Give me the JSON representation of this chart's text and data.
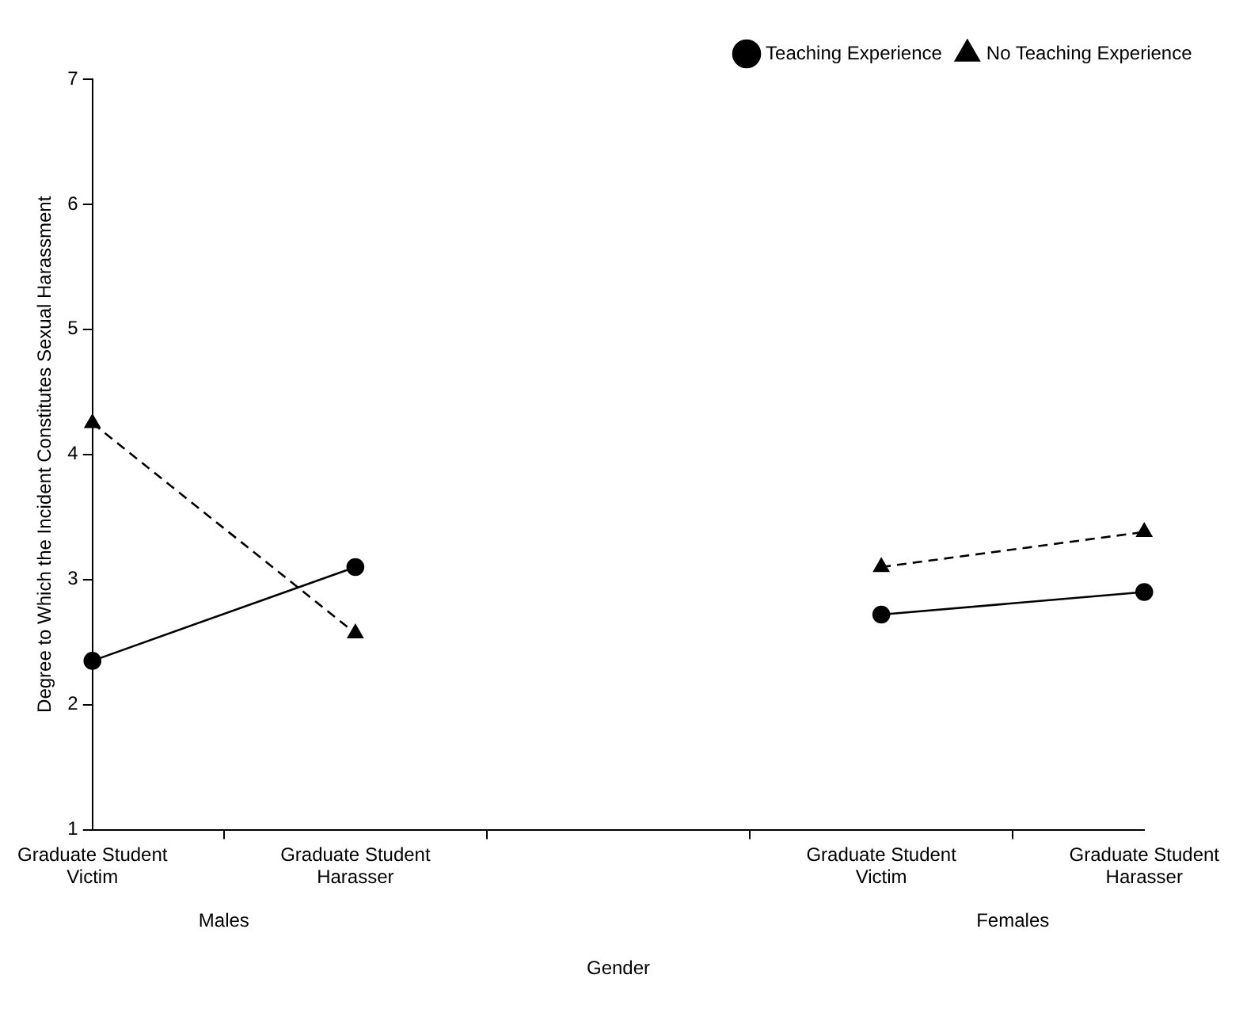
{
  "chart_data": {
    "type": "line",
    "ylabel": "Degree to Which the Incident Constitutes Sexual Harassment",
    "xlabel": "Gender",
    "categories": [
      "Graduate Student Victim",
      "Graduate Student Harasser",
      null,
      "Graduate Student Victim",
      "Graduate Student Harasser"
    ],
    "series": [
      {
        "name": "Teaching Experience",
        "color": "#000000",
        "marker": "circle",
        "line_style": "solid",
        "values": [
          2.35,
          3.1,
          null,
          2.72,
          2.9
        ]
      },
      {
        "name": "No Teaching Experience",
        "color": "#000000",
        "marker": "triangle",
        "line_style": "dashed",
        "values": [
          4.25,
          2.57,
          null,
          3.1,
          3.38
        ]
      }
    ],
    "annotations": [
      "Males",
      "Females"
    ],
    "ylim": [
      1,
      7
    ],
    "yticks": [
      1,
      2,
      3,
      4,
      5,
      6,
      7
    ],
    "grid": false,
    "legend": "top right"
  }
}
